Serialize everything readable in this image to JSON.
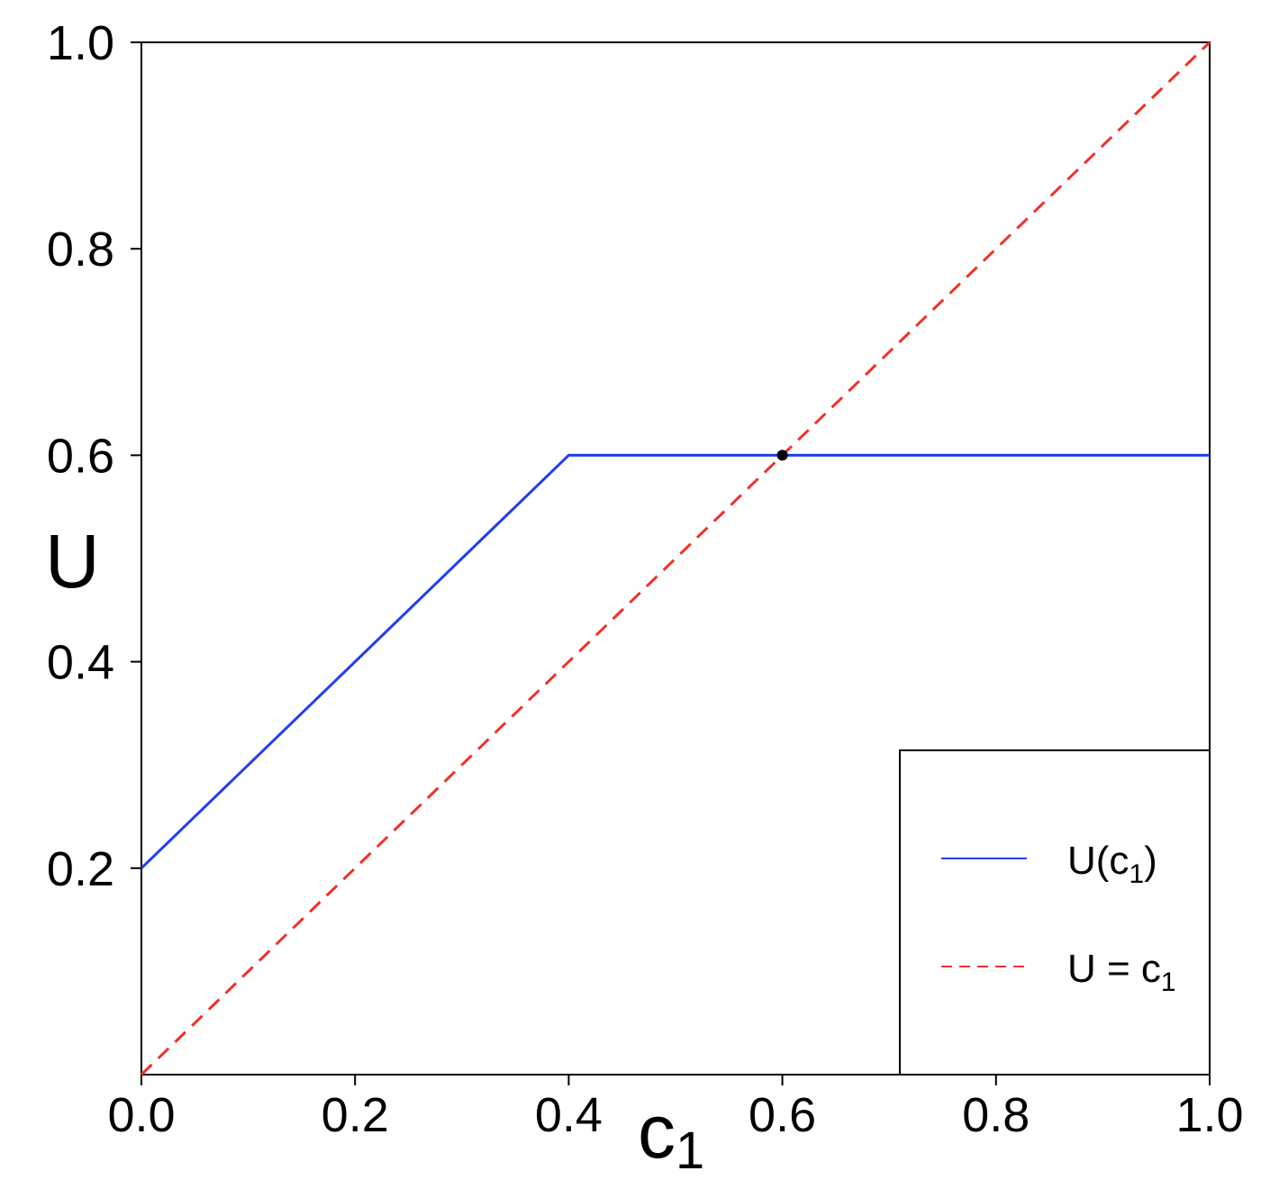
{
  "chart_data": {
    "type": "line",
    "xlabel": "c",
    "xlabel_sub": "1",
    "ylabel": "U",
    "xlim": [
      0,
      1
    ],
    "ylim": [
      0,
      1
    ],
    "x_ticks": [
      0.0,
      0.2,
      0.4,
      0.6,
      0.8,
      1.0
    ],
    "x_tick_labels": [
      "0.0",
      "0.2",
      "0.4",
      "0.6",
      "0.8",
      "1.0"
    ],
    "y_ticks": [
      0.2,
      0.4,
      0.6,
      0.8,
      1.0
    ],
    "y_tick_labels": [
      "0.2",
      "0.4",
      "0.6",
      "0.8",
      "1.0"
    ],
    "grid": false,
    "legend_position": "bottom-right",
    "series": [
      {
        "name": "U(c1)",
        "legend_main": "U(c",
        "legend_sub": "1",
        "legend_close": ")",
        "color": "#1f3ff0",
        "style": "solid",
        "x": [
          0.0,
          0.4,
          1.0
        ],
        "y": [
          0.2,
          0.6,
          0.6
        ]
      },
      {
        "name": "U = c1",
        "legend_main": "U = c",
        "legend_sub": "1",
        "legend_close": "",
        "color": "#f0302a",
        "style": "dashed",
        "x": [
          0.0,
          1.0
        ],
        "y": [
          0.0,
          1.0
        ]
      }
    ],
    "points": [
      {
        "x": 0.6,
        "y": 0.6,
        "color": "#000000"
      }
    ]
  }
}
